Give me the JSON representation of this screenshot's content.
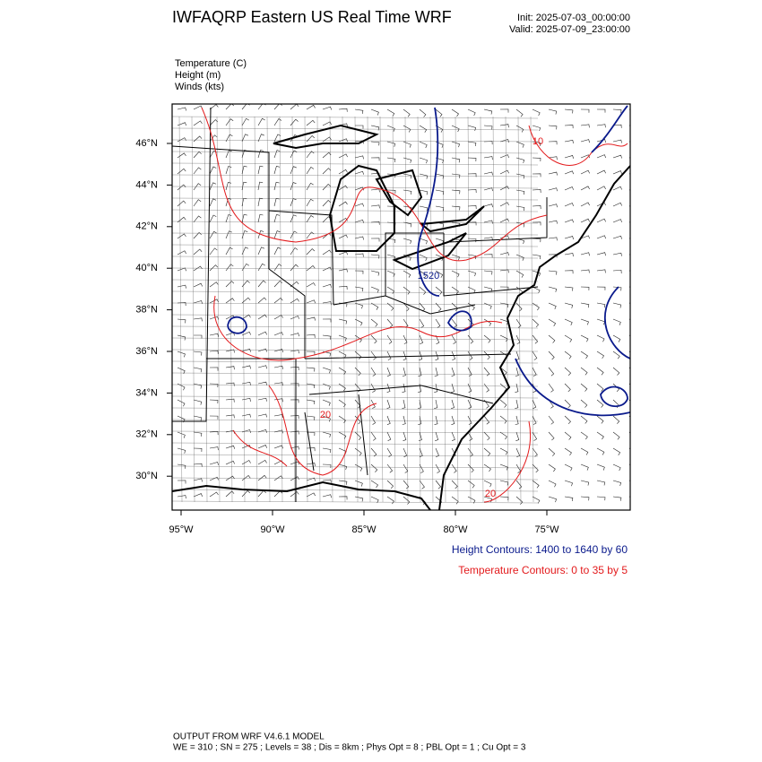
{
  "header": {
    "title": "IWFAQRP Eastern US Real Time WRF",
    "init": "Init: 2025-07-03_00:00:00",
    "valid": "Valid: 2025-07-09_23:00:00"
  },
  "fields": [
    "Temperature   (C)",
    "Height   (m)",
    "Winds   (kts)"
  ],
  "map": {
    "lat_labels": [
      "46°N",
      "44°N",
      "42°N",
      "40°N",
      "38°N",
      "36°N",
      "34°N",
      "32°N",
      "30°N"
    ],
    "lon_labels": [
      "95°W",
      "90°W",
      "85°W",
      "80°W",
      "75°W"
    ],
    "contour_labels": [
      "10",
      "20",
      "20",
      "1520"
    ]
  },
  "legend": [
    "Height Contours: 1400 to 1640 by 60",
    "Temperature Contours: 0 to 35 by 5"
  ],
  "footer": [
    "OUTPUT FROM WRF V4.6.1 MODEL",
    "WE = 310 ; SN = 275 ; Levels = 38 ; Dis = 8km ; Phys Opt = 8 ; PBL Opt = 1 ; Cu Opt = 3"
  ]
}
